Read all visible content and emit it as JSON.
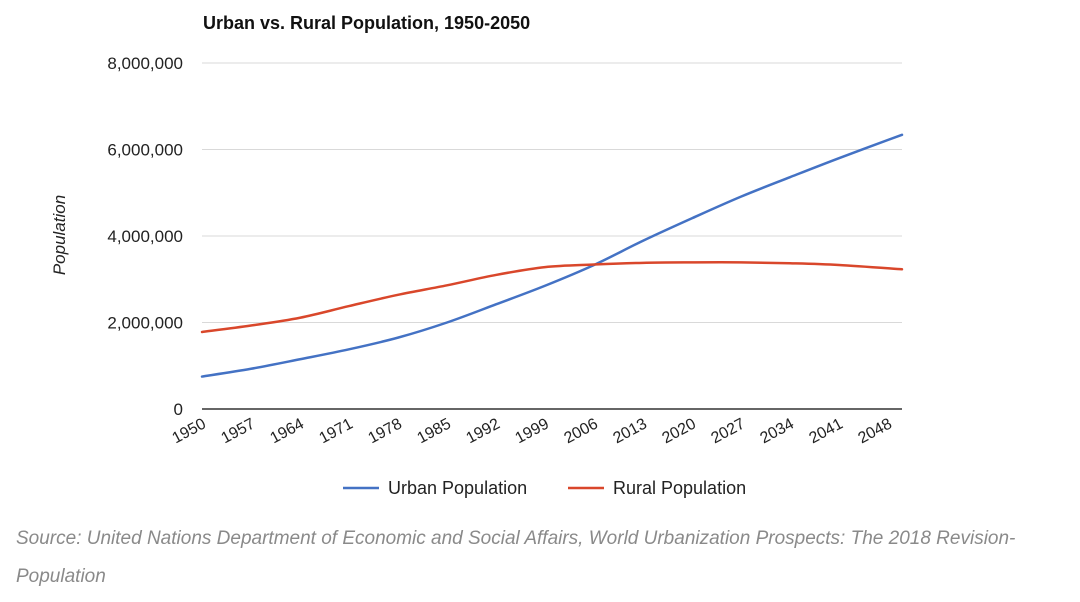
{
  "chart_data": {
    "type": "line",
    "title": "Urban vs. Rural Population, 1950-2050",
    "xlabel": "",
    "ylabel": "Population",
    "ylim": [
      0,
      8000000
    ],
    "y_ticks": [
      0,
      2000000,
      4000000,
      6000000,
      8000000
    ],
    "y_tick_labels": [
      "0",
      "2,000,000",
      "4,000,000",
      "6,000,000",
      "8,000,000"
    ],
    "x_range": [
      1950,
      2050
    ],
    "x_ticks": [
      1950,
      1957,
      1964,
      1971,
      1978,
      1985,
      1992,
      1999,
      2006,
      2013,
      2020,
      2027,
      2034,
      2041,
      2048
    ],
    "grid": true,
    "legend_position": "bottom",
    "x": [
      1950,
      1957,
      1964,
      1971,
      1978,
      1985,
      1992,
      1999,
      2006,
      2013,
      2020,
      2027,
      2034,
      2041,
      2050
    ],
    "series": [
      {
        "name": "Urban Population",
        "color": "#4472c4",
        "values": [
          750000,
          930000,
          1150000,
          1380000,
          1650000,
          2000000,
          2420000,
          2850000,
          3330000,
          3890000,
          4410000,
          4910000,
          5360000,
          5800000,
          6340000
        ]
      },
      {
        "name": "Rural Population",
        "color": "#d9472b",
        "values": [
          1780000,
          1930000,
          2110000,
          2380000,
          2640000,
          2860000,
          3100000,
          3280000,
          3340000,
          3380000,
          3390000,
          3390000,
          3370000,
          3330000,
          3230000
        ]
      }
    ]
  },
  "source": "Source: United Nations Department of Economic and Social Affairs, World Urbanization Prospects: The 2018 Revision-Population",
  "colors": {
    "axis": "#333333",
    "grid": "#d9d9d9",
    "source_text": "#8a8a8a"
  }
}
